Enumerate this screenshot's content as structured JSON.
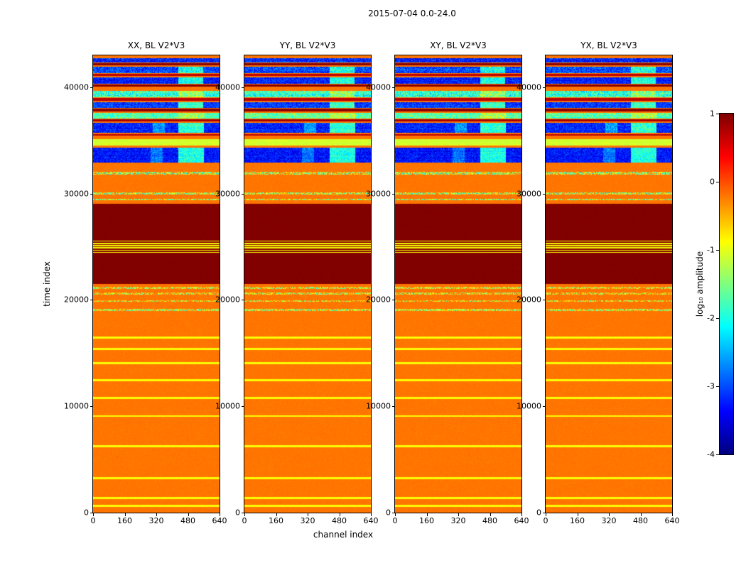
{
  "chart_data": {
    "type": "heatmap",
    "title": "2015-07-04 0.0-24.0",
    "xlabel": "channel index",
    "ylabel": "time index",
    "panels": [
      {
        "title": "XX, BL V2*V3"
      },
      {
        "title": "YY, BL V2*V3"
      },
      {
        "title": "XY, BL V2*V3"
      },
      {
        "title": "YX, BL V2*V3"
      }
    ],
    "panels_share_data": true,
    "x_range": [
      0,
      640
    ],
    "y_range": [
      0,
      43000
    ],
    "x_ticks": [
      0,
      160,
      320,
      480,
      640
    ],
    "y_ticks": [
      0,
      10000,
      20000,
      30000,
      40000
    ],
    "grid": false,
    "colorbar": {
      "label": "log₁₀ amplitude",
      "ticks": [
        1,
        0,
        -1,
        -2,
        -3,
        -4
      ],
      "vmax": 1,
      "vmin": -4,
      "colormap": "jet"
    },
    "background_value": -0.2,
    "bands": [
      {
        "t0": 550,
        "t1": 730,
        "v": -0.9
      },
      {
        "t0": 1300,
        "t1": 1480,
        "v": -0.9
      },
      {
        "t0": 3150,
        "t1": 3330,
        "v": -0.9
      },
      {
        "t0": 6150,
        "t1": 6330,
        "v": -0.9
      },
      {
        "t0": 9000,
        "t1": 9180,
        "v": -0.9
      },
      {
        "t0": 10700,
        "t1": 10880,
        "v": -0.9
      },
      {
        "t0": 12350,
        "t1": 12530,
        "v": -0.9
      },
      {
        "t0": 13950,
        "t1": 14130,
        "v": -0.9
      },
      {
        "t0": 15300,
        "t1": 15470,
        "v": -0.9
      },
      {
        "t0": 16350,
        "t1": 16530,
        "v": -0.9
      },
      {
        "t0": 18950,
        "t1": 19140,
        "v": -1.2,
        "n": 0.8,
        "sparse": 0.75
      },
      {
        "t0": 19800,
        "t1": 19960,
        "v": -1.0,
        "n": 0.7,
        "sparse": 0.6
      },
      {
        "t0": 20500,
        "t1": 20690,
        "v": -1.1,
        "n": 0.8,
        "sparse": 0.7
      },
      {
        "t0": 21060,
        "t1": 21260,
        "v": -1.1,
        "n": 0.8,
        "sparse": 0.7
      },
      {
        "t0": 21500,
        "t1": 29050,
        "v": 1.0,
        "n": 0.04
      },
      {
        "t0": 24430,
        "t1": 24520,
        "v": -0.9
      },
      {
        "t0": 24640,
        "t1": 24730,
        "v": -0.9
      },
      {
        "t0": 24850,
        "t1": 24940,
        "v": -0.9
      },
      {
        "t0": 25060,
        "t1": 25150,
        "v": -0.9
      },
      {
        "t0": 25270,
        "t1": 25360,
        "v": -0.9
      },
      {
        "t0": 25480,
        "t1": 25570,
        "v": -0.9
      },
      {
        "t0": 29350,
        "t1": 29540,
        "v": -1.3,
        "n": 0.9,
        "sparse": 0.75
      },
      {
        "t0": 29900,
        "t1": 30090,
        "v": -1.3,
        "n": 0.9,
        "sparse": 0.75
      },
      {
        "t0": 31800,
        "t1": 32020,
        "v": -1.3,
        "n": 0.9,
        "sparse": 0.7
      },
      {
        "t0": 32900,
        "t1": 34300,
        "v": -3.3,
        "n": 0.35,
        "patches": [
          {
            "x0": 430,
            "x1": 560,
            "dv": 1.3
          },
          {
            "x0": 290,
            "x1": 350,
            "dv": 0.5
          }
        ]
      },
      {
        "t0": 34550,
        "t1": 35150,
        "v": -1.1,
        "n": 0.12
      },
      {
        "t0": 35450,
        "t1": 35620,
        "v": 0.7,
        "n": 0.05
      },
      {
        "t0": 35750,
        "t1": 36650,
        "v": -3.2,
        "n": 0.4,
        "patches": [
          {
            "x0": 430,
            "x1": 560,
            "dv": 1.3
          },
          {
            "x0": 300,
            "x1": 360,
            "dv": 0.6
          }
        ]
      },
      {
        "t0": 36800,
        "t1": 37000,
        "v": 0.8,
        "n": 0.05
      },
      {
        "t0": 37050,
        "t1": 37600,
        "v": -1.7,
        "n": 0.5,
        "patches": [
          {
            "x0": 430,
            "x1": 560,
            "dv": 0.4
          }
        ]
      },
      {
        "t0": 37750,
        "t1": 37980,
        "v": 0.95,
        "n": 0.03
      },
      {
        "t0": 38050,
        "t1": 38600,
        "v": -3.1,
        "n": 0.4,
        "patches": [
          {
            "x0": 430,
            "x1": 555,
            "dv": 1.25
          }
        ]
      },
      {
        "t0": 38750,
        "t1": 38980,
        "v": 0.7,
        "n": 0.05
      },
      {
        "t0": 39050,
        "t1": 39650,
        "v": -1.9,
        "n": 0.6,
        "patches": [
          {
            "x0": 430,
            "x1": 555,
            "dv": 0.5
          }
        ]
      },
      {
        "t0": 40050,
        "t1": 40280,
        "v": 0.95,
        "n": 0.03
      },
      {
        "t0": 40350,
        "t1": 40900,
        "v": -3.2,
        "n": 0.4,
        "patches": [
          {
            "x0": 430,
            "x1": 555,
            "dv": 1.2
          }
        ]
      },
      {
        "t0": 41050,
        "t1": 41280,
        "v": 0.7,
        "n": 0.05
      },
      {
        "t0": 41350,
        "t1": 41900,
        "v": -3.0,
        "n": 0.5,
        "patches": [
          {
            "x0": 430,
            "x1": 555,
            "dv": 1.0
          }
        ]
      },
      {
        "t0": 42050,
        "t1": 42280,
        "v": 0.95,
        "n": 0.03
      },
      {
        "t0": 42350,
        "t1": 42750,
        "v": -3.2,
        "n": 0.45
      }
    ]
  }
}
